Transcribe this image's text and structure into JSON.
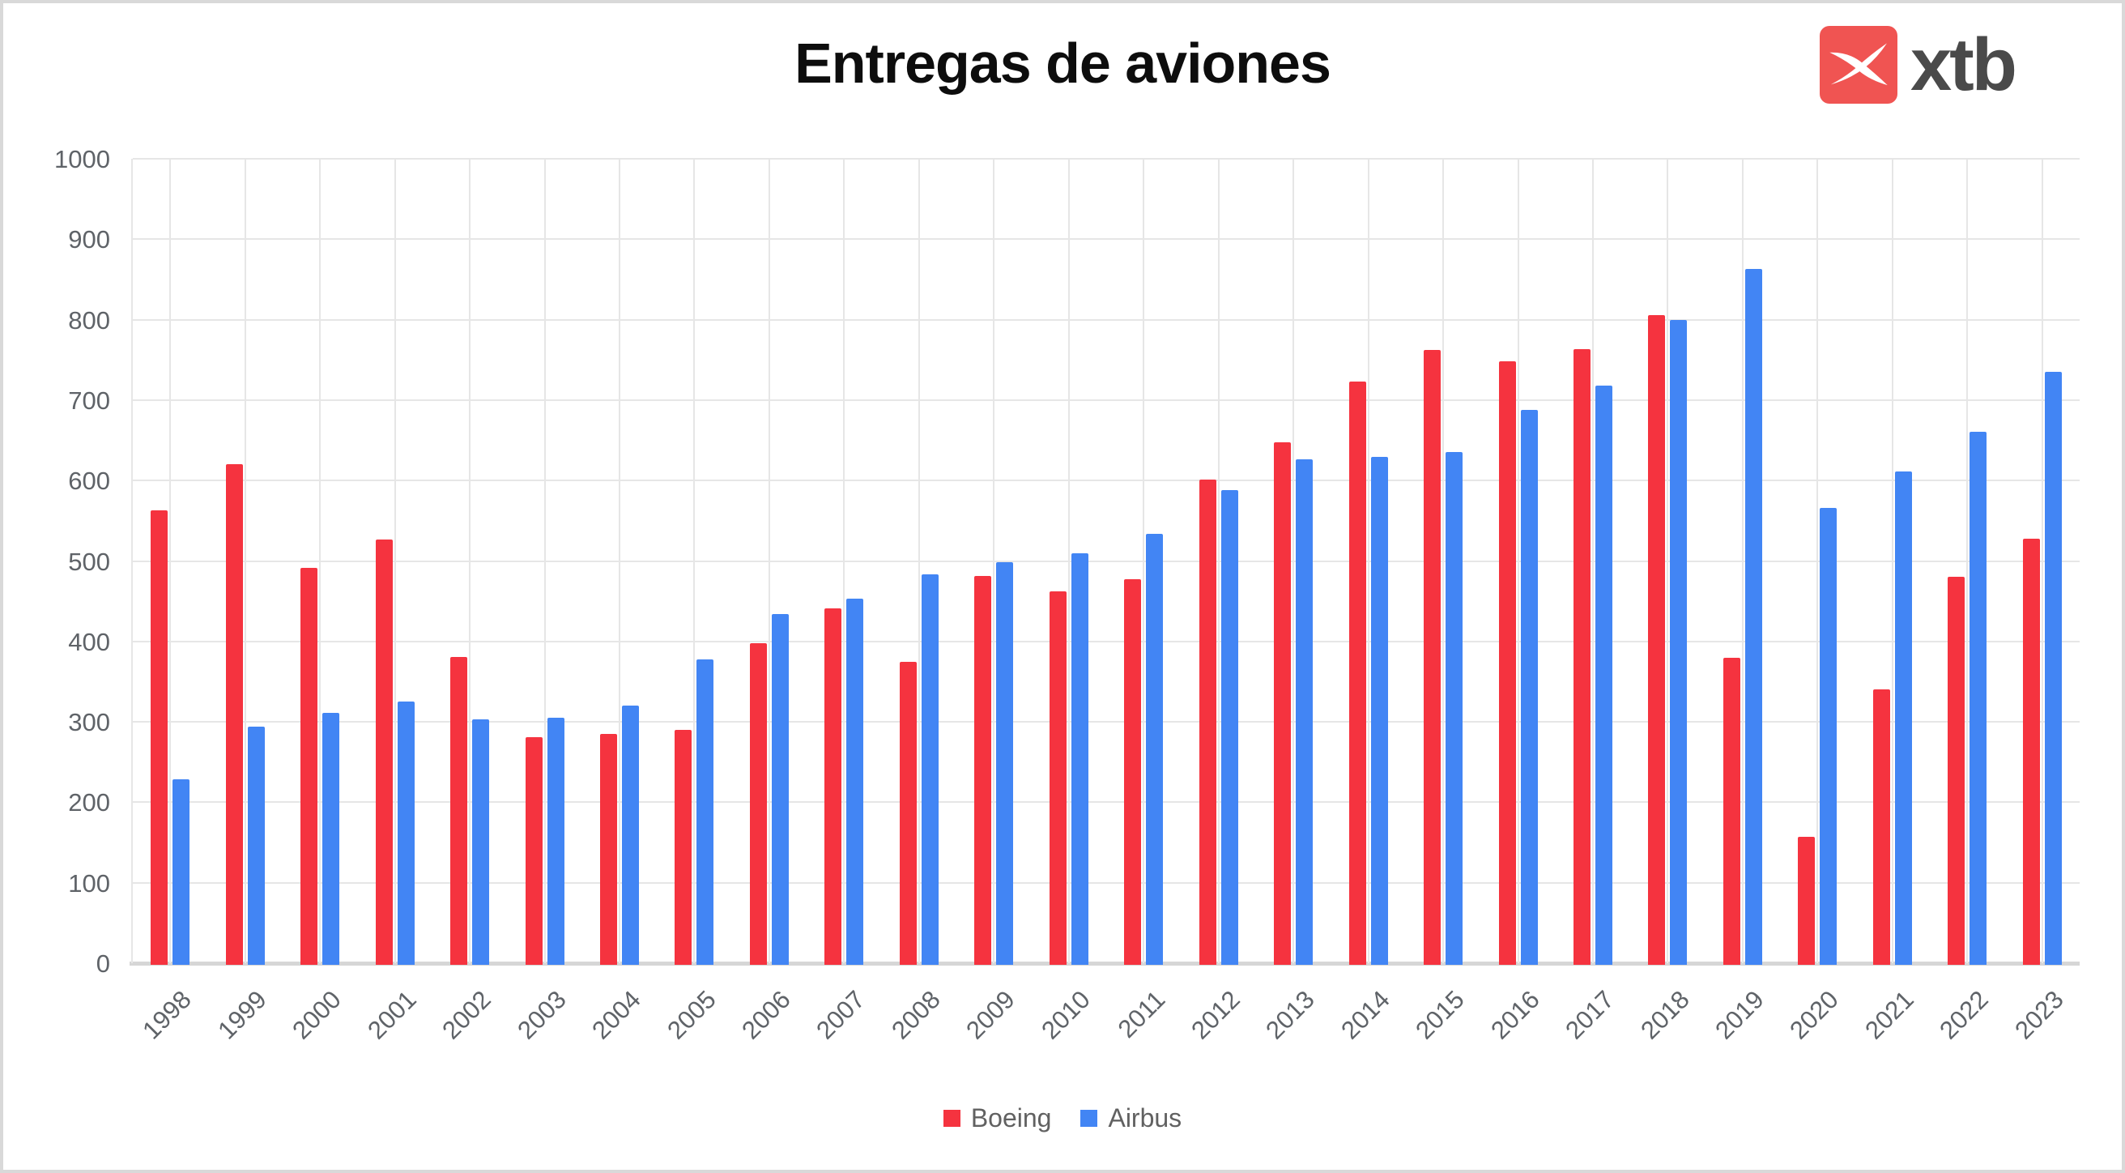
{
  "header": {
    "title": "Entregas de aviones",
    "logo_text": "xtb"
  },
  "colors": {
    "boeing_red": "#f5333f",
    "airbus_blue": "#4285f4",
    "grid_line": "#e6e6e6",
    "axis_line": "#d6d6d6",
    "tick_label": "#5f6368",
    "title_text": "#0d0d0d",
    "logo_red": "#f05452",
    "logo_text_gray": "#4a4a4a",
    "frame_border": "#d9d9d9"
  },
  "chart_data": {
    "type": "bar",
    "title": "Entregas de aviones",
    "categories": [
      "1998",
      "1999",
      "2000",
      "2001",
      "2002",
      "2003",
      "2004",
      "2005",
      "2006",
      "2007",
      "2008",
      "2009",
      "2010",
      "2011",
      "2012",
      "2013",
      "2014",
      "2015",
      "2016",
      "2017",
      "2018",
      "2019",
      "2020",
      "2021",
      "2022",
      "2023"
    ],
    "series": [
      {
        "name": "Boeing",
        "color": "#f5333f",
        "values": [
          563,
          620,
          491,
          527,
          381,
          281,
          285,
          290,
          398,
          441,
          375,
          481,
          462,
          477,
          601,
          648,
          723,
          762,
          748,
          763,
          806,
          380,
          157,
          340,
          480,
          528
        ]
      },
      {
        "name": "Airbus",
        "color": "#4285f4",
        "values": [
          229,
          294,
          311,
          325,
          303,
          305,
          320,
          378,
          434,
          453,
          483,
          498,
          510,
          534,
          588,
          626,
          629,
          635,
          688,
          718,
          800,
          863,
          566,
          611,
          661,
          735
        ]
      }
    ],
    "xlabel": "",
    "ylabel": "",
    "ylim": [
      0,
      1000
    ],
    "yticks": [
      0,
      100,
      200,
      300,
      400,
      500,
      600,
      700,
      800,
      900,
      1000
    ],
    "grid": true,
    "x_tick_rotation": -45,
    "legend_position": "bottom"
  },
  "legend": {
    "items": [
      {
        "label": "Boeing",
        "color": "#f5333f"
      },
      {
        "label": "Airbus",
        "color": "#4285f4"
      }
    ]
  }
}
